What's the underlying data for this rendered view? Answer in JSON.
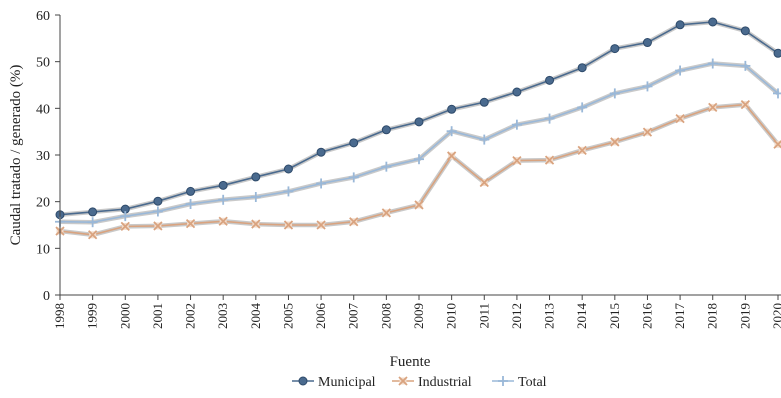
{
  "chart_data": {
    "type": "line",
    "xlabel": "Fuente",
    "ylabel": "Caudal tratado / generado (%)",
    "ylim": [
      0,
      60
    ],
    "yticks": [
      0,
      10,
      20,
      30,
      40,
      50,
      60
    ],
    "grid": false,
    "legend_position": "bottom-center",
    "x": [
      "1998",
      "1999",
      "2000",
      "2001",
      "2002",
      "2003",
      "2004",
      "2005",
      "2006",
      "2007",
      "2008",
      "2009",
      "2010",
      "2011",
      "2012",
      "2013",
      "2014",
      "2015",
      "2016",
      "2017",
      "2018",
      "2019",
      "2020"
    ],
    "series": [
      {
        "name": "Municipal",
        "color": "#4a6a8e",
        "marker": "circle",
        "values": [
          17.2,
          17.8,
          18.4,
          20.1,
          22.2,
          23.5,
          25.3,
          27.0,
          30.6,
          32.6,
          35.4,
          37.1,
          39.8,
          41.3,
          43.5,
          46.0,
          48.7,
          52.8,
          54.1,
          57.9,
          58.5,
          56.6,
          51.8
        ]
      },
      {
        "name": "Industrial",
        "color": "#d9a37f",
        "marker": "x",
        "values": [
          13.7,
          12.9,
          14.7,
          14.8,
          15.3,
          15.8,
          15.2,
          15.0,
          15.0,
          15.7,
          17.6,
          19.3,
          29.8,
          24.1,
          28.8,
          28.9,
          31.0,
          32.8,
          34.9,
          37.8,
          40.2,
          40.8,
          32.3
        ]
      },
      {
        "name": "Total",
        "color": "#9ab8d8",
        "marker": "plus",
        "values": [
          15.7,
          15.6,
          16.9,
          17.9,
          19.5,
          20.4,
          21.0,
          22.2,
          23.9,
          25.2,
          27.5,
          29.1,
          35.1,
          33.3,
          36.5,
          37.8,
          40.2,
          43.2,
          44.7,
          48.1,
          49.6,
          49.1,
          43.2
        ]
      }
    ]
  }
}
